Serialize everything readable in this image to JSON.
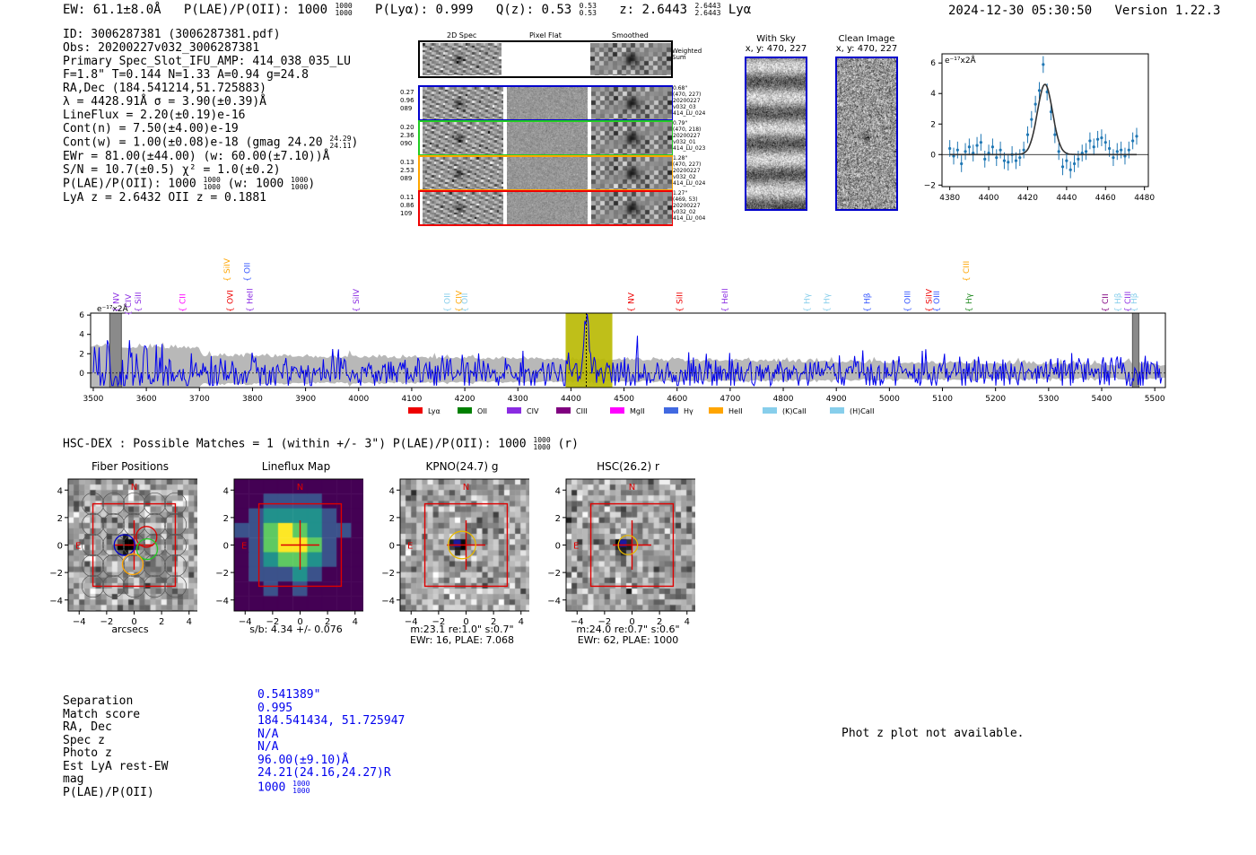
{
  "header": {
    "ew": "EW: 61.1±8.0Å",
    "plae": "P(LAE)/P(OII): 1000",
    "plae_hi": "1000",
    "plae_lo": "1000",
    "plya": "P(Lyα): 0.999",
    "qz": "Q(z): 0.53",
    "qz_hi": "0.53",
    "qz_lo": "0.53",
    "z": "z: 2.6443",
    "z_hi": "2.6443",
    "z_lo": "2.6443",
    "z_line": "Lyα",
    "timestamp": "2024-12-30 05:30:50",
    "version": "Version 1.22.3"
  },
  "info": {
    "id": "ID: 3006287381 (3006287381.pdf)",
    "obs": "Obs: 20200227v032_3006287381",
    "primary": "Primary Spec_Slot_IFU_AMP: 414_038_035_LU",
    "fiber": "F=1.8\"  T=0.144  N=1.33  A=0.94  g=24.8",
    "radec": "RA,Dec (184.541214,51.725883)",
    "lambda": "λ = 4428.91Å  σ = 3.90(±0.39)Å",
    "lineflux": "LineFlux = 2.20(±0.19)e-16",
    "contn": "Cont(n) = 7.50(±4.00)e-19",
    "contw": "Cont(w) = 1.00(±0.08)e-18 (gmag 24.20",
    "contw_hi": "24.29",
    "contw_lo": "24.11",
    "ewr": "EWr = 81.00(±44.00) (w: 60.00(±7.10))Å",
    "sn": "S/N = 10.7(±0.5)  χ² = 1.0(±0.2)",
    "plae": "P(LAE)/P(OII): 1000",
    "plae_hi": "1000",
    "plae_lo": "1000",
    "plae_w": "(w: 1000",
    "plae_w_hi": "1000",
    "plae_w_lo": "1000",
    "lyaz": "LyA z = 2.6432   OII z = 0.1881"
  },
  "cutouts": {
    "headers": [
      "2D Spec",
      "Pixel Flat",
      "Smoothed"
    ],
    "weighted_label": "Weighted Sum",
    "rows": [
      {
        "left": [
          "0.27",
          "0.96",
          "089"
        ],
        "right": [
          "0.68\"",
          "(470, 227)",
          "20200227",
          "v032_03",
          "414_LU_024"
        ],
        "color": "#0000cc"
      },
      {
        "left": [
          "0.20",
          "2.36",
          "090"
        ],
        "right": [
          "0.79\"",
          "(470, 218)",
          "20200227",
          "v032_01",
          "414_LU_023"
        ],
        "color": "#22cc22"
      },
      {
        "left": [
          "0.13",
          "2.53",
          "089"
        ],
        "right": [
          "1.28\"",
          "(470, 227)",
          "20200227",
          "v032_02",
          "414_LU_024"
        ],
        "color": "#ffa500"
      },
      {
        "left": [
          "0.11",
          "0.86",
          "109"
        ],
        "right": [
          "1.27\"",
          "(469, 53)",
          "20200227",
          "v032_02",
          "414_LU_004"
        ],
        "color": "#ee0000"
      }
    ]
  },
  "sky": {
    "with_title": "With Sky",
    "with_sub": "x, y: 470, 227",
    "clean_title": "Clean Image",
    "clean_sub": "x, y: 470, 227"
  },
  "zoom_chart": {
    "type": "scatter",
    "unit_label": "e⁻¹⁷x2Å",
    "xticks": [
      "4380",
      "4400",
      "4420",
      "4440",
      "4460",
      "4480"
    ],
    "yticks": [
      "6",
      "4",
      "2",
      "0",
      "−2"
    ],
    "xlim": [
      4376,
      4482
    ],
    "ylim": [
      -2.1,
      6.6
    ],
    "points": [
      [
        4380,
        0.4
      ],
      [
        4382,
        -0.1
      ],
      [
        4384,
        0.3
      ],
      [
        4386,
        -0.6
      ],
      [
        4388,
        0.2
      ],
      [
        4390,
        0.5
      ],
      [
        4392,
        0.1
      ],
      [
        4394,
        0.6
      ],
      [
        4396,
        0.8
      ],
      [
        4398,
        -0.3
      ],
      [
        4400,
        0.1
      ],
      [
        4402,
        0.5
      ],
      [
        4404,
        -0.2
      ],
      [
        4406,
        0.3
      ],
      [
        4408,
        -0.4
      ],
      [
        4410,
        -0.5
      ],
      [
        4412,
        0.0
      ],
      [
        4414,
        -0.4
      ],
      [
        4416,
        -0.2
      ],
      [
        4418,
        0.3
      ],
      [
        4420,
        1.3
      ],
      [
        4422,
        2.3
      ],
      [
        4424,
        3.3
      ],
      [
        4426,
        4.2
      ],
      [
        4428,
        5.9
      ],
      [
        4430,
        4.1
      ],
      [
        4432,
        2.8
      ],
      [
        4434,
        1.3
      ],
      [
        4436,
        0.2
      ],
      [
        4438,
        -0.8
      ],
      [
        4440,
        -0.4
      ],
      [
        4442,
        -1.0
      ],
      [
        4444,
        -0.6
      ],
      [
        4446,
        -0.3
      ],
      [
        4448,
        0.1
      ],
      [
        4450,
        0.2
      ],
      [
        4452,
        0.9
      ],
      [
        4454,
        0.5
      ],
      [
        4456,
        1.0
      ],
      [
        4458,
        1.1
      ],
      [
        4460,
        0.8
      ],
      [
        4462,
        0.4
      ],
      [
        4464,
        -0.2
      ],
      [
        4466,
        0.2
      ],
      [
        4468,
        0.3
      ],
      [
        4470,
        -0.1
      ],
      [
        4472,
        0.3
      ],
      [
        4474,
        0.9
      ],
      [
        4476,
        1.2
      ]
    ],
    "fit": {
      "amp": 4.6,
      "center": 4428.9,
      "sigma": 3.9
    }
  },
  "spectrum_chart": {
    "type": "line",
    "unit_label": "e⁻¹⁷x2Å",
    "xlim": [
      3495,
      5520
    ],
    "ylim": [
      -1.5,
      6.2
    ],
    "xticks": [
      "3500",
      "3600",
      "3700",
      "3800",
      "3900",
      "4000",
      "4100",
      "4200",
      "4300",
      "4400",
      "4500",
      "4600",
      "4700",
      "4800",
      "4900",
      "5000",
      "5100",
      "5200",
      "5300",
      "5400",
      "5500"
    ],
    "yticks": [
      "6",
      "4",
      "2",
      "0"
    ],
    "highlight_range": [
      4390,
      4478
    ],
    "line_center": 4428.9,
    "mask_ranges": [
      [
        3531,
        3553
      ],
      [
        5458,
        5470
      ]
    ],
    "line_labels": [
      {
        "text": "NV",
        "x": 3543,
        "color": "#8a2be2",
        "row": 2
      },
      {
        "text": "CIV",
        "x": 3566,
        "color": "#8a2be2",
        "row": 3
      },
      {
        "text": "SiII",
        "x": 3585,
        "color": "#8a2be2",
        "row": 2
      },
      {
        "text": "CII",
        "x": 3668,
        "color": "#ff00ff",
        "row": 2
      },
      {
        "text": "SiIV",
        "x": 3752,
        "color": "#ffa500",
        "row": 0
      },
      {
        "text": "OVI",
        "x": 3758,
        "color": "#ee0000",
        "row": 2
      },
      {
        "text": "OII",
        "x": 3790,
        "color": "#3355ff",
        "row": 0
      },
      {
        "text": "HeII",
        "x": 3795,
        "color": "#8a2be2",
        "row": 2
      },
      {
        "text": "SiIV",
        "x": 3995,
        "color": "#8a2be2",
        "row": 2
      },
      {
        "text": "OII",
        "x": 4167,
        "color": "#87ceeb",
        "row": 2
      },
      {
        "text": "CIV",
        "x": 4189,
        "color": "#ffa500",
        "row": 2
      },
      {
        "text": "OII",
        "x": 4200,
        "color": "#87ceeb",
        "row": 2
      },
      {
        "text": "NV",
        "x": 4513,
        "color": "#ee0000",
        "row": 2
      },
      {
        "text": "SiII",
        "x": 4605,
        "color": "#ee0000",
        "row": 2
      },
      {
        "text": "HeII",
        "x": 4690,
        "color": "#8a2be2",
        "row": 2
      },
      {
        "text": "Hγ",
        "x": 4845,
        "color": "#87ceeb",
        "row": 2
      },
      {
        "text": "Hγ",
        "x": 4882,
        "color": "#87ceeb",
        "row": 2
      },
      {
        "text": "Hβ",
        "x": 4958,
        "color": "#3355ff",
        "row": 2
      },
      {
        "text": "OIII",
        "x": 5034,
        "color": "#3355ff",
        "row": 2
      },
      {
        "text": "SiIV",
        "x": 5075,
        "color": "#ee0000",
        "row": 2
      },
      {
        "text": "OIII",
        "x": 5089,
        "color": "#3355ff",
        "row": 2
      },
      {
        "text": "CIII",
        "x": 5145,
        "color": "#ffa500",
        "row": 0
      },
      {
        "text": "Hγ",
        "x": 5150,
        "color": "#228b22",
        "row": 2
      },
      {
        "text": "CII",
        "x": 5407,
        "color": "#800080",
        "row": 2
      },
      {
        "text": "Hβ",
        "x": 5430,
        "color": "#87ceeb",
        "row": 2
      },
      {
        "text": "CIII",
        "x": 5449,
        "color": "#8a2be2",
        "row": 2
      },
      {
        "text": "Hβ",
        "x": 5461,
        "color": "#87ceeb",
        "row": 2
      }
    ],
    "legend": [
      {
        "label": "Lyα",
        "color": "#ee0000"
      },
      {
        "label": "OII",
        "color": "#008000"
      },
      {
        "label": "CIV",
        "color": "#8a2be2"
      },
      {
        "label": "CIII",
        "color": "#800080"
      },
      {
        "label": "MgII",
        "color": "#ff00ff"
      },
      {
        "label": "Hγ",
        "color": "#4169e1"
      },
      {
        "label": "HeII",
        "color": "#ffa500"
      },
      {
        "label": "(K)CaII",
        "color": "#87ceeb"
      },
      {
        "label": "(H)CaII",
        "color": "#87ceeb"
      }
    ]
  },
  "hsc": {
    "title": "HSC-DEX : Possible Matches = 1 (within +/- 3\")  P(LAE)/P(OII): 1000",
    "title_hi": "1000",
    "title_lo": "1000",
    "title_suffix": "(r)"
  },
  "panels": [
    {
      "title": "Fiber Positions",
      "xlabel": "arcsecs",
      "sub": [],
      "style": "fiber"
    },
    {
      "title": "Lineflux Map",
      "xlabel": "",
      "sub": [
        "s/b: 4.34 +/- 0.076"
      ],
      "style": "flux"
    },
    {
      "title": "KPNO(24.7) g",
      "xlabel": "",
      "sub": [
        "m:23.1   re:1.0\"   s:0.7\"",
        "EWr: 16, PLAE: 7.068"
      ],
      "style": "kpno"
    },
    {
      "title": "HSC(26.2) r",
      "xlabel": "",
      "sub": [
        "m:24.0   re:0.7\"   s:0.6\"",
        "EWr: 62, PLAE: 1000"
      ],
      "style": "hsc"
    }
  ],
  "panel_axes": {
    "ticks_x": [
      "−4",
      "−2",
      "0",
      "2",
      "4"
    ],
    "ticks_y": [
      "4",
      "2",
      "0",
      "−2",
      "−4"
    ],
    "north": "N",
    "east": "E"
  },
  "match": {
    "labels": [
      "Separation",
      "Match score",
      "RA, Dec",
      "Spec z",
      "Photo z",
      "Est LyA rest-EW",
      "mag",
      "P(LAE)/P(OII)"
    ],
    "values": [
      "0.541389\"",
      "0.995",
      "184.541434, 51.725947",
      "N/A",
      "N/A",
      "96.00(±9.10)Å",
      "24.21(24.16,24.27)R",
      "1000"
    ],
    "plae_hi": "1000",
    "plae_lo": "1000"
  },
  "photz": "Phot z plot not available."
}
